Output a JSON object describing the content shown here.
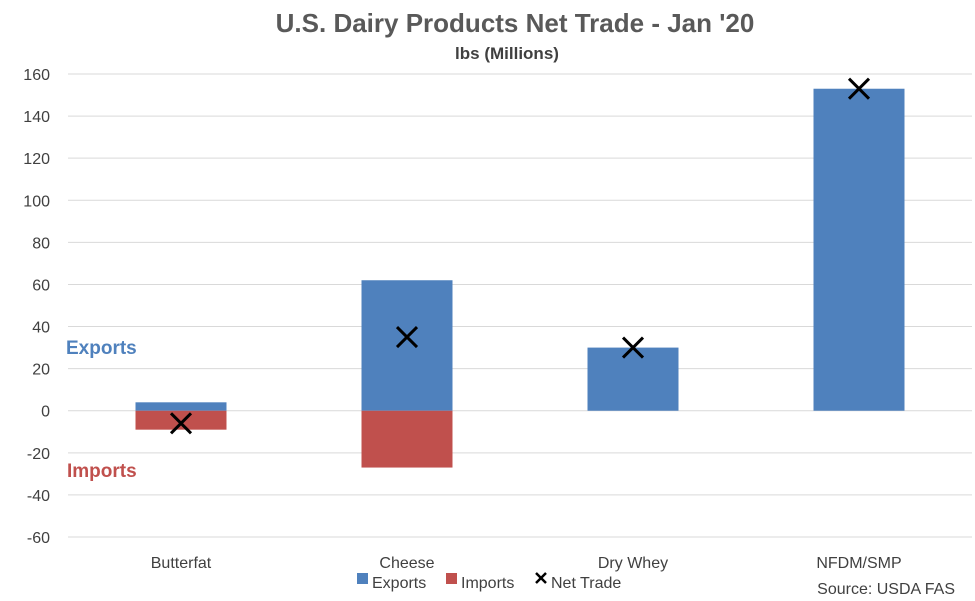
{
  "chart_data": {
    "type": "bar",
    "title": "U.S. Dairy Products Net Trade - Jan '20",
    "subtitle": "lbs (Millions)",
    "categories": [
      "Butterfat",
      "Cheese",
      "Dry Whey",
      "NFDM/SMP"
    ],
    "series": [
      {
        "name": "Exports",
        "type": "bar",
        "color": "#4f81bd",
        "values": [
          4,
          62,
          30,
          153
        ]
      },
      {
        "name": "Imports",
        "type": "bar",
        "color": "#c0504d",
        "values": [
          -9,
          -27,
          0,
          0
        ]
      },
      {
        "name": "Net Trade",
        "type": "marker",
        "marker": "x",
        "color": "#000000",
        "values": [
          -6,
          35,
          30,
          153
        ]
      }
    ],
    "ylim": [
      -60,
      160
    ],
    "yticks": [
      -60,
      -40,
      -20,
      0,
      20,
      40,
      60,
      80,
      100,
      120,
      140,
      160
    ],
    "grid": true,
    "legend": "bottom",
    "annotations": [
      {
        "text": "Exports",
        "color": "#4f81bd"
      },
      {
        "text": "Imports",
        "color": "#c0504d"
      }
    ],
    "source": "Source: USDA FAS"
  }
}
